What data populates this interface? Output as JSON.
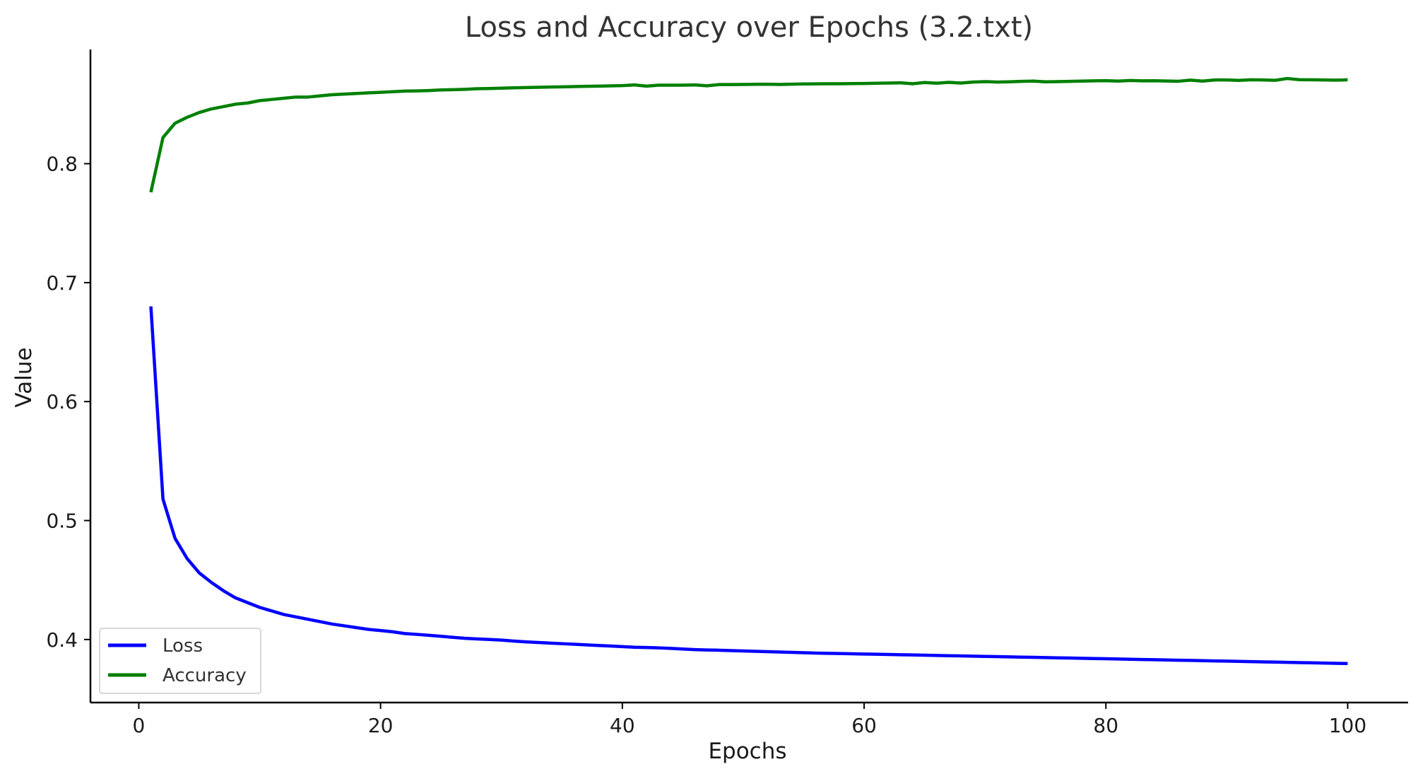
{
  "chart_data": {
    "type": "line",
    "title": "Loss and Accuracy over Epochs (3.2.txt)",
    "xlabel": "Epochs",
    "ylabel": "Value",
    "xlim": [
      -4,
      105
    ],
    "ylim": [
      0.347,
      0.896
    ],
    "xticks": [
      0,
      20,
      40,
      60,
      80,
      100
    ],
    "yticks": [
      0.4,
      0.5,
      0.6,
      0.7,
      0.8
    ],
    "grid": false,
    "legend_position": "lower-left",
    "x": [
      1,
      2,
      3,
      4,
      5,
      6,
      7,
      8,
      9,
      10,
      11,
      12,
      13,
      14,
      15,
      16,
      17,
      18,
      19,
      20,
      21,
      22,
      23,
      24,
      25,
      26,
      27,
      28,
      29,
      30,
      31,
      32,
      33,
      34,
      35,
      36,
      37,
      38,
      39,
      40,
      41,
      42,
      43,
      44,
      45,
      46,
      47,
      48,
      49,
      50,
      51,
      52,
      53,
      54,
      55,
      56,
      57,
      58,
      59,
      60,
      61,
      62,
      63,
      64,
      65,
      66,
      67,
      68,
      69,
      70,
      71,
      72,
      73,
      74,
      75,
      76,
      77,
      78,
      79,
      80,
      81,
      82,
      83,
      84,
      85,
      86,
      87,
      88,
      89,
      90,
      91,
      92,
      93,
      94,
      95,
      96,
      97,
      98,
      99,
      100
    ],
    "series": [
      {
        "name": "Loss",
        "color": "#0000ff",
        "values": [
          0.68,
          0.518,
          0.485,
          0.468,
          0.456,
          0.448,
          0.441,
          0.435,
          0.431,
          0.427,
          0.424,
          0.421,
          0.419,
          0.417,
          0.415,
          0.413,
          0.4115,
          0.41,
          0.4085,
          0.4075,
          0.4065,
          0.405,
          0.4043,
          0.4035,
          0.4027,
          0.4018,
          0.401,
          0.4005,
          0.4,
          0.3995,
          0.3987,
          0.398,
          0.3975,
          0.397,
          0.3965,
          0.396,
          0.3955,
          0.395,
          0.3945,
          0.394,
          0.3935,
          0.3933,
          0.393,
          0.3925,
          0.392,
          0.3915,
          0.3912,
          0.391,
          0.3907,
          0.3904,
          0.3901,
          0.3898,
          0.3895,
          0.3892,
          0.3889,
          0.3886,
          0.3884,
          0.3882,
          0.388,
          0.3878,
          0.3876,
          0.3874,
          0.3872,
          0.387,
          0.3868,
          0.3866,
          0.3864,
          0.3862,
          0.386,
          0.3858,
          0.3856,
          0.3854,
          0.3852,
          0.385,
          0.3848,
          0.3846,
          0.3844,
          0.3842,
          0.384,
          0.3838,
          0.3836,
          0.3834,
          0.3832,
          0.383,
          0.3828,
          0.3826,
          0.3824,
          0.3822,
          0.382,
          0.3818,
          0.3816,
          0.3814,
          0.3812,
          0.381,
          0.3808,
          0.3806,
          0.3804,
          0.3802,
          0.38,
          0.3798
        ]
      },
      {
        "name": "Accuracy",
        "color": "#008000",
        "values": [
          0.776,
          0.822,
          0.834,
          0.839,
          0.843,
          0.846,
          0.848,
          0.85,
          0.851,
          0.853,
          0.854,
          0.855,
          0.856,
          0.856,
          0.857,
          0.858,
          0.8585,
          0.859,
          0.8595,
          0.86,
          0.8605,
          0.861,
          0.8612,
          0.8615,
          0.862,
          0.8622,
          0.8625,
          0.863,
          0.8632,
          0.8635,
          0.8638,
          0.864,
          0.8642,
          0.8644,
          0.8646,
          0.8648,
          0.865,
          0.8652,
          0.8654,
          0.8656,
          0.8662,
          0.8652,
          0.866,
          0.866,
          0.866,
          0.8662,
          0.8655,
          0.8665,
          0.8665,
          0.8666,
          0.8667,
          0.8668,
          0.8666,
          0.8668,
          0.867,
          0.8671,
          0.8672,
          0.8672,
          0.8673,
          0.8674,
          0.8676,
          0.8678,
          0.868,
          0.8672,
          0.8682,
          0.8676,
          0.8684,
          0.8678,
          0.8686,
          0.869,
          0.8686,
          0.8688,
          0.8692,
          0.8694,
          0.8688,
          0.869,
          0.8692,
          0.8694,
          0.8696,
          0.8698,
          0.8694,
          0.8699,
          0.8696,
          0.8697,
          0.8695,
          0.8693,
          0.8702,
          0.8694,
          0.8704,
          0.8704,
          0.87,
          0.8705,
          0.8704,
          0.8701,
          0.8716,
          0.8706,
          0.8705,
          0.8704,
          0.8702,
          0.8705
        ]
      }
    ]
  }
}
